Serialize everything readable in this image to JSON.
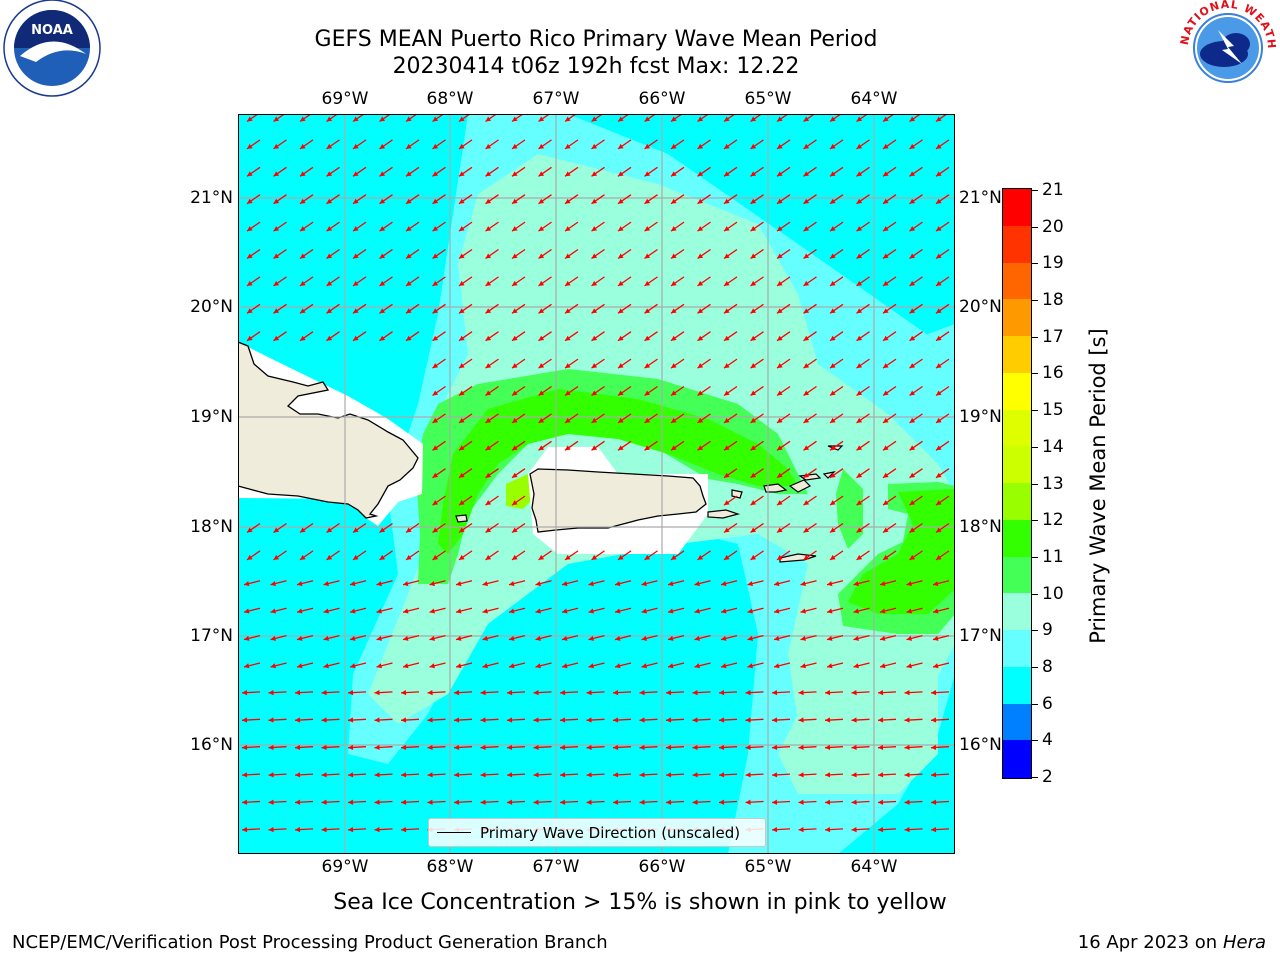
{
  "title": {
    "line1": "GEFS MEAN Puerto Rico Primary Wave Mean Period",
    "line2": "20230414 t06z 192h fcst   Max: 12.22"
  },
  "map": {
    "lon_labels": [
      "69°W",
      "68°W",
      "67°W",
      "66°W",
      "65°W",
      "64°W"
    ],
    "lat_labels": [
      "21°N",
      "20°N",
      "19°N",
      "18°N",
      "17°N",
      "16°N"
    ],
    "legend_label": "Primary Wave Direction (unscaled)",
    "arrow_color": "#ff0000",
    "land_color": "#efecdc"
  },
  "colorbar": {
    "label": "Primary Wave Mean Period [s]",
    "ticks": [
      "21",
      "20",
      "19",
      "18",
      "17",
      "16",
      "15",
      "14",
      "13",
      "12",
      "11",
      "10",
      "9",
      "8",
      "6",
      "4",
      "2"
    ],
    "bins": [
      {
        "range": "2-4",
        "color": "#0000ff"
      },
      {
        "range": "4-6",
        "color": "#0080ff"
      },
      {
        "range": "6-8",
        "color": "#00ffff"
      },
      {
        "range": "8-9",
        "color": "#66ffff"
      },
      {
        "range": "9-10",
        "color": "#99ffdd"
      },
      {
        "range": "10-11",
        "color": "#44ff55"
      },
      {
        "range": "11-12",
        "color": "#33ff00"
      },
      {
        "range": "12-13",
        "color": "#99ff00"
      },
      {
        "range": "13-14",
        "color": "#ccff00"
      },
      {
        "range": "14-15",
        "color": "#ddff00"
      },
      {
        "range": "15-16",
        "color": "#ffff00"
      },
      {
        "range": "16-17",
        "color": "#ffcc00"
      },
      {
        "range": "17-18",
        "color": "#ff9900"
      },
      {
        "range": "18-19",
        "color": "#ff6600"
      },
      {
        "range": "19-20",
        "color": "#ff3300"
      },
      {
        "range": "20-21",
        "color": "#ff0000"
      }
    ]
  },
  "note": "Sea Ice Concentration > 15% is shown in pink to yellow",
  "footer": {
    "left": "NCEP/EMC/Verification Post Processing Product Generation Branch",
    "date": "16 Apr 2023 on ",
    "machine": "Hera"
  },
  "logos": {
    "noaa": "NOAA",
    "noaa_ring": "NATIONAL OCEANIC AND ATMOSPHERIC ADMINISTRATION · U.S. DEPARTMENT OF COMMERCE",
    "nws_ring": "NATIONAL WEATHER SERVICE"
  }
}
